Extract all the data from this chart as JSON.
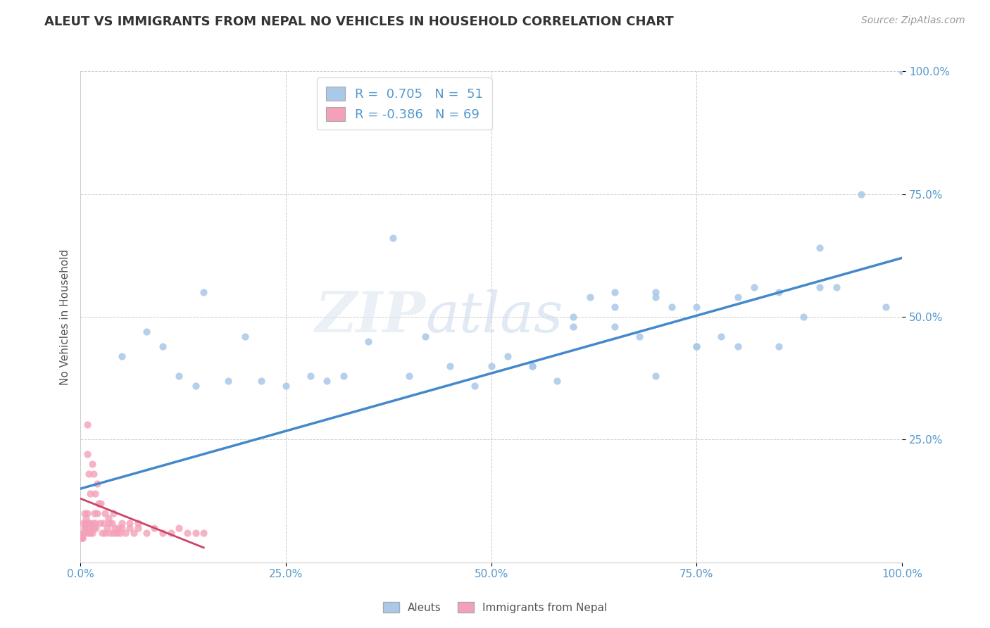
{
  "title": "ALEUT VS IMMIGRANTS FROM NEPAL NO VEHICLES IN HOUSEHOLD CORRELATION CHART",
  "source": "Source: ZipAtlas.com",
  "ylabel": "No Vehicles in Household",
  "watermark_zip": "ZIP",
  "watermark_atlas": "atlas",
  "legend_r1": "R =  0.705",
  "legend_n1": "N =  51",
  "legend_r2": "R = -0.386",
  "legend_n2": "N = 69",
  "xlim": [
    0.0,
    1.0
  ],
  "ylim": [
    0.0,
    1.0
  ],
  "xtick_labels": [
    "0.0%",
    "25.0%",
    "50.0%",
    "75.0%",
    "100.0%"
  ],
  "xtick_vals": [
    0.0,
    0.25,
    0.5,
    0.75,
    1.0
  ],
  "ytick_labels": [
    "25.0%",
    "50.0%",
    "75.0%",
    "100.0%"
  ],
  "ytick_vals": [
    0.25,
    0.5,
    0.75,
    1.0
  ],
  "color_aleut": "#aac8e8",
  "color_nepal": "#f4a0b8",
  "background_color": "#ffffff",
  "grid_color": "#cccccc",
  "title_color": "#333333",
  "tick_color": "#5599cc",
  "aleut_scatter_x": [
    0.05,
    0.08,
    0.1,
    0.12,
    0.14,
    0.18,
    0.22,
    0.28,
    0.35,
    0.4,
    0.45,
    0.48,
    0.5,
    0.52,
    0.55,
    0.58,
    0.6,
    0.62,
    0.65,
    0.68,
    0.7,
    0.72,
    0.75,
    0.78,
    0.8,
    0.82,
    0.85,
    0.88,
    0.9,
    0.92,
    0.95,
    0.98,
    1.0,
    0.3,
    0.38,
    0.42,
    0.15,
    0.2,
    0.25,
    0.32,
    0.55,
    0.6,
    0.65,
    0.7,
    0.75,
    0.8,
    0.85,
    0.9,
    0.65,
    0.7,
    0.75
  ],
  "aleut_scatter_y": [
    0.42,
    0.47,
    0.44,
    0.38,
    0.36,
    0.37,
    0.37,
    0.38,
    0.45,
    0.38,
    0.4,
    0.36,
    0.4,
    0.42,
    0.4,
    0.37,
    0.48,
    0.54,
    0.52,
    0.46,
    0.54,
    0.52,
    0.52,
    0.46,
    0.54,
    0.56,
    0.55,
    0.5,
    0.56,
    0.56,
    0.75,
    0.52,
    1.0,
    0.37,
    0.66,
    0.46,
    0.55,
    0.46,
    0.36,
    0.38,
    0.4,
    0.5,
    0.48,
    0.38,
    0.44,
    0.44,
    0.44,
    0.64,
    0.55,
    0.55,
    0.44
  ],
  "nepal_scatter_x": [
    0.002,
    0.003,
    0.004,
    0.005,
    0.006,
    0.007,
    0.008,
    0.009,
    0.01,
    0.011,
    0.012,
    0.013,
    0.014,
    0.015,
    0.016,
    0.017,
    0.018,
    0.019,
    0.02,
    0.022,
    0.024,
    0.026,
    0.028,
    0.03,
    0.032,
    0.034,
    0.036,
    0.038,
    0.04,
    0.042,
    0.044,
    0.046,
    0.048,
    0.05,
    0.055,
    0.06,
    0.065,
    0.07,
    0.08,
    0.09,
    0.1,
    0.11,
    0.12,
    0.13,
    0.14,
    0.15,
    0.008,
    0.01,
    0.012,
    0.014,
    0.016,
    0.018,
    0.02,
    0.025,
    0.03,
    0.035,
    0.04,
    0.05,
    0.06,
    0.07,
    0.001,
    0.002,
    0.003,
    0.004,
    0.005,
    0.006,
    0.007,
    0.008,
    0.009
  ],
  "nepal_scatter_y": [
    0.05,
    0.08,
    0.06,
    0.1,
    0.07,
    0.09,
    0.28,
    0.06,
    0.07,
    0.08,
    0.06,
    0.07,
    0.06,
    0.08,
    0.07,
    0.1,
    0.08,
    0.07,
    0.1,
    0.12,
    0.08,
    0.06,
    0.08,
    0.06,
    0.07,
    0.09,
    0.06,
    0.08,
    0.06,
    0.07,
    0.06,
    0.07,
    0.06,
    0.07,
    0.06,
    0.07,
    0.06,
    0.07,
    0.06,
    0.07,
    0.06,
    0.06,
    0.07,
    0.06,
    0.06,
    0.06,
    0.22,
    0.18,
    0.14,
    0.2,
    0.18,
    0.14,
    0.16,
    0.12,
    0.1,
    0.08,
    0.1,
    0.08,
    0.08,
    0.08,
    0.05,
    0.05,
    0.06,
    0.06,
    0.07,
    0.08,
    0.08,
    0.1,
    0.08
  ],
  "aleut_trend_x": [
    0.0,
    1.0
  ],
  "aleut_trend_y": [
    0.15,
    0.62
  ],
  "nepal_trend_x": [
    0.0,
    0.15
  ],
  "nepal_trend_y": [
    0.13,
    0.03
  ],
  "title_fontsize": 13,
  "axis_label_fontsize": 11,
  "tick_fontsize": 11,
  "legend_fontsize": 13,
  "source_fontsize": 10
}
